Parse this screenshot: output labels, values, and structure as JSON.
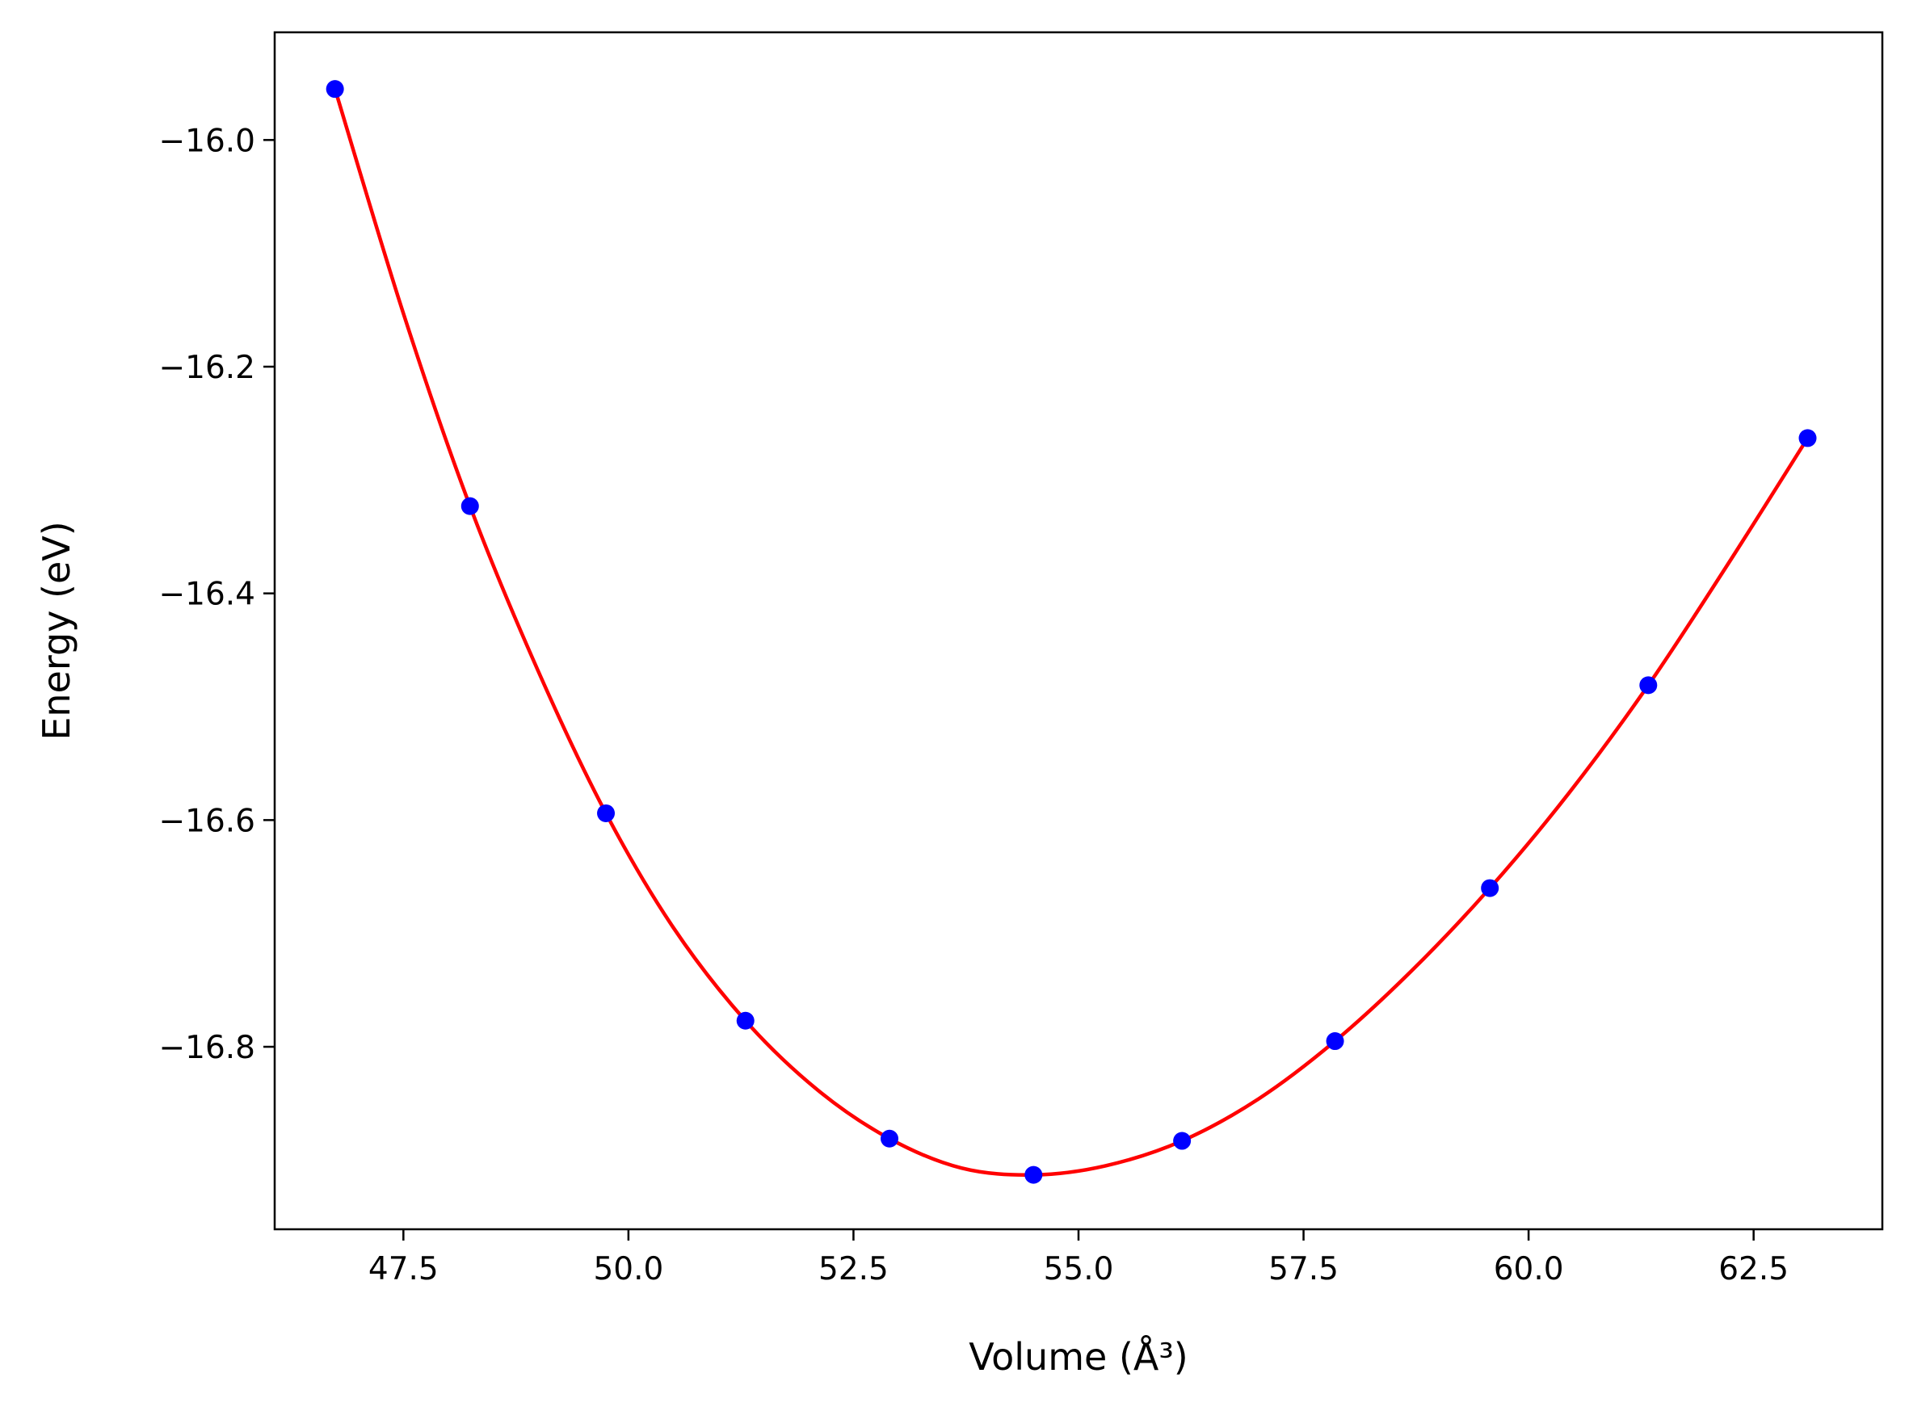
{
  "chart_data": {
    "type": "scatter",
    "title": "",
    "xlabel": "Volume (Å³)",
    "ylabel": "Energy (eV)",
    "xlim": [
      46.07,
      63.93
    ],
    "ylim": [
      -16.961,
      -15.905
    ],
    "xticks": [
      47.5,
      50.0,
      52.5,
      55.0,
      57.5,
      60.0,
      62.5
    ],
    "xtick_labels": [
      "47.5",
      "50.0",
      "52.5",
      "55.0",
      "57.5",
      "60.0",
      "62.5"
    ],
    "yticks": [
      -16.0,
      -16.2,
      -16.4,
      -16.6,
      -16.8
    ],
    "ytick_labels": [
      "−16.0",
      "−16.2",
      "−16.4",
      "−16.6",
      "−16.8"
    ],
    "grid": false,
    "legend": "none",
    "series": [
      {
        "kind": "points",
        "color": "#0000ff",
        "x": [
          46.74,
          48.24,
          49.75,
          51.3,
          52.9,
          54.5,
          56.15,
          57.85,
          59.57,
          61.33,
          63.1
        ],
        "y": [
          -15.955,
          -16.323,
          -16.594,
          -16.777,
          -16.881,
          -16.913,
          -16.883,
          -16.795,
          -16.66,
          -16.481,
          -16.263
        ]
      },
      {
        "kind": "fit-line",
        "color": "#ff0000",
        "x": [
          46.74,
          47.5,
          48.24,
          49.0,
          49.75,
          50.5,
          51.3,
          52.1,
          52.9,
          53.7,
          54.5,
          55.3,
          56.15,
          57.0,
          57.85,
          58.7,
          59.57,
          60.45,
          61.33,
          62.2,
          63.1
        ],
        "y": [
          -15.955,
          -16.153,
          -16.323,
          -16.469,
          -16.594,
          -16.695,
          -16.777,
          -16.838,
          -16.881,
          -16.907,
          -16.913,
          -16.905,
          -16.883,
          -16.846,
          -16.795,
          -16.733,
          -16.66,
          -16.576,
          -16.481,
          -16.376,
          -16.263
        ]
      }
    ]
  }
}
